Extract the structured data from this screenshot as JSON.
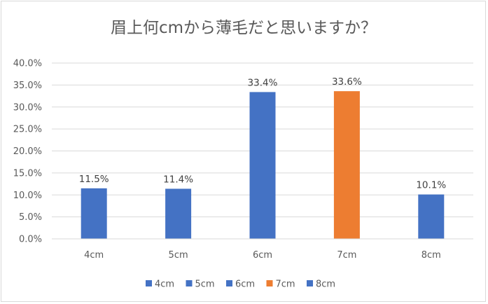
{
  "chart_data": {
    "type": "bar",
    "title": "眉上何cmから薄毛だと思いますか？",
    "categories": [
      "4cm",
      "5cm",
      "6cm",
      "7cm",
      "8cm"
    ],
    "values": [
      11.5,
      11.4,
      33.4,
      33.6,
      10.1
    ],
    "data_labels": [
      "11.5%",
      "11.4%",
      "33.4%",
      "33.6%",
      "10.1%"
    ],
    "colors": [
      "#4472c4",
      "#4472c4",
      "#4472c4",
      "#ed7d31",
      "#4472c4"
    ],
    "ylim": [
      0,
      40
    ],
    "ytick_step": 5,
    "ytick_labels": [
      "0.0%",
      "5.0%",
      "10.0%",
      "15.0%",
      "20.0%",
      "25.0%",
      "30.0%",
      "35.0%",
      "40.0%"
    ],
    "legend": [
      "4cm",
      "5cm",
      "6cm",
      "7cm",
      "8cm"
    ],
    "legend_position": "bottom",
    "grid": true,
    "gridline_color": "#d9d9d9"
  }
}
